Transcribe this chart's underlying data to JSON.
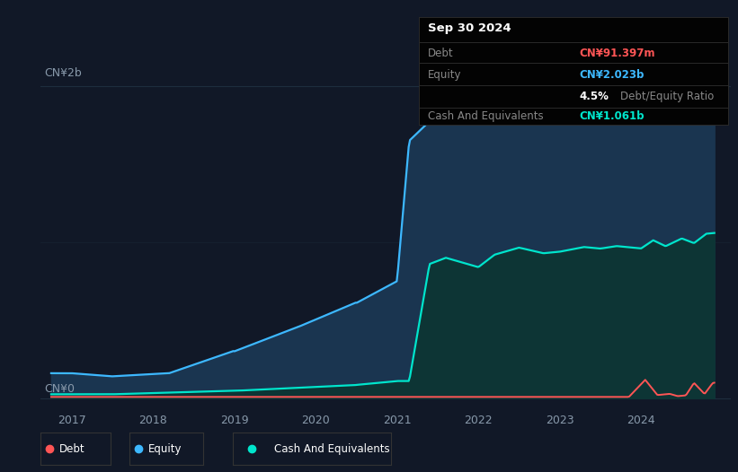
{
  "bg_color": "#111827",
  "chart_bg": "#111827",
  "tooltip": {
    "date": "Sep 30 2024",
    "debt_label": "Debt",
    "debt_value": "CN¥91.397m",
    "debt_color": "#ff5555",
    "equity_label": "Equity",
    "equity_value": "CN¥2.023b",
    "equity_color": "#3db8ff",
    "ratio_value": "4.5%",
    "ratio_label": "Debt/Equity Ratio",
    "cash_label": "Cash And Equivalents",
    "cash_value": "CN¥1.061b",
    "cash_color": "#00e5cc"
  },
  "ylabel_top": "CN¥2b",
  "ylabel_bottom": "CN¥0",
  "x_ticks": [
    2017,
    2018,
    2019,
    2020,
    2021,
    2022,
    2023,
    2024
  ],
  "xlim": [
    2016.62,
    2025.1
  ],
  "ylim": [
    -0.08,
    2.25
  ],
  "equity_color": "#3db8ff",
  "equity_fill": "#1a3550",
  "cash_color": "#00e5cc",
  "cash_fill": "#0d3535",
  "debt_color": "#ff5555",
  "grid_color": "#1e2d3d",
  "label_color": "#8899aa"
}
